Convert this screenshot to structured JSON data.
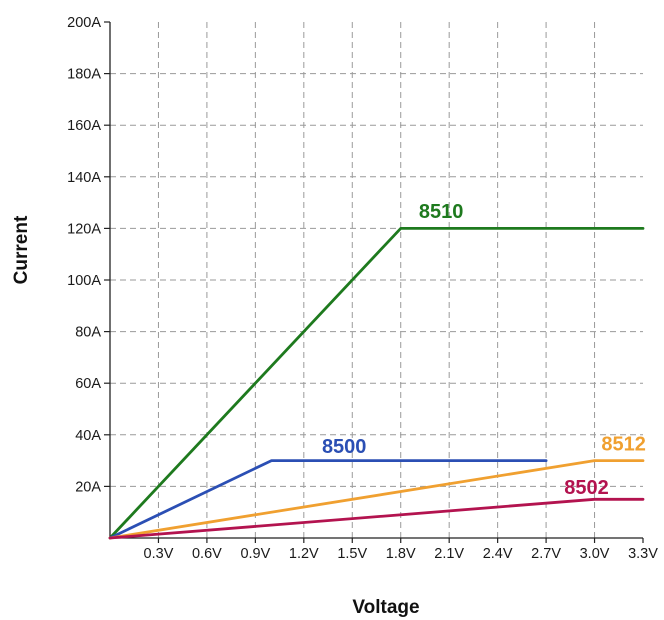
{
  "chart_data": {
    "type": "line",
    "xlabel": "Voltage",
    "ylabel": "Current",
    "xlim": [
      0,
      3.3
    ],
    "ylim": [
      0,
      200
    ],
    "x_ticks": [
      0.3,
      0.6,
      0.9,
      1.2,
      1.5,
      1.8,
      2.1,
      2.4,
      2.7,
      3.0,
      3.3
    ],
    "x_tick_labels": [
      "0.3V",
      "0.6V",
      "0.9V",
      "1.2V",
      "1.5V",
      "1.8V",
      "2.1V",
      "2.4V",
      "2.7V",
      "3.0V",
      "3.3V"
    ],
    "y_ticks": [
      20,
      40,
      60,
      80,
      100,
      120,
      140,
      160,
      180,
      200
    ],
    "y_tick_labels": [
      "20A",
      "40A",
      "60A",
      "80A",
      "100A",
      "120A",
      "140A",
      "160A",
      "180A",
      "200A"
    ],
    "grid": true,
    "series": [
      {
        "name": "8510",
        "color": "#1e7a1e",
        "points": [
          [
            0,
            0
          ],
          [
            1.8,
            120
          ],
          [
            3.3,
            120
          ]
        ]
      },
      {
        "name": "8500",
        "color": "#2b4fb4",
        "points": [
          [
            0,
            0
          ],
          [
            1.0,
            30
          ],
          [
            2.7,
            30
          ]
        ]
      },
      {
        "name": "8512",
        "color": "#f0a030",
        "points": [
          [
            0,
            0
          ],
          [
            3.0,
            30
          ],
          [
            3.3,
            30
          ]
        ]
      },
      {
        "name": "8502",
        "color": "#b3134f",
        "points": [
          [
            0,
            0
          ],
          [
            3.0,
            15
          ],
          [
            3.3,
            15
          ]
        ]
      }
    ]
  }
}
